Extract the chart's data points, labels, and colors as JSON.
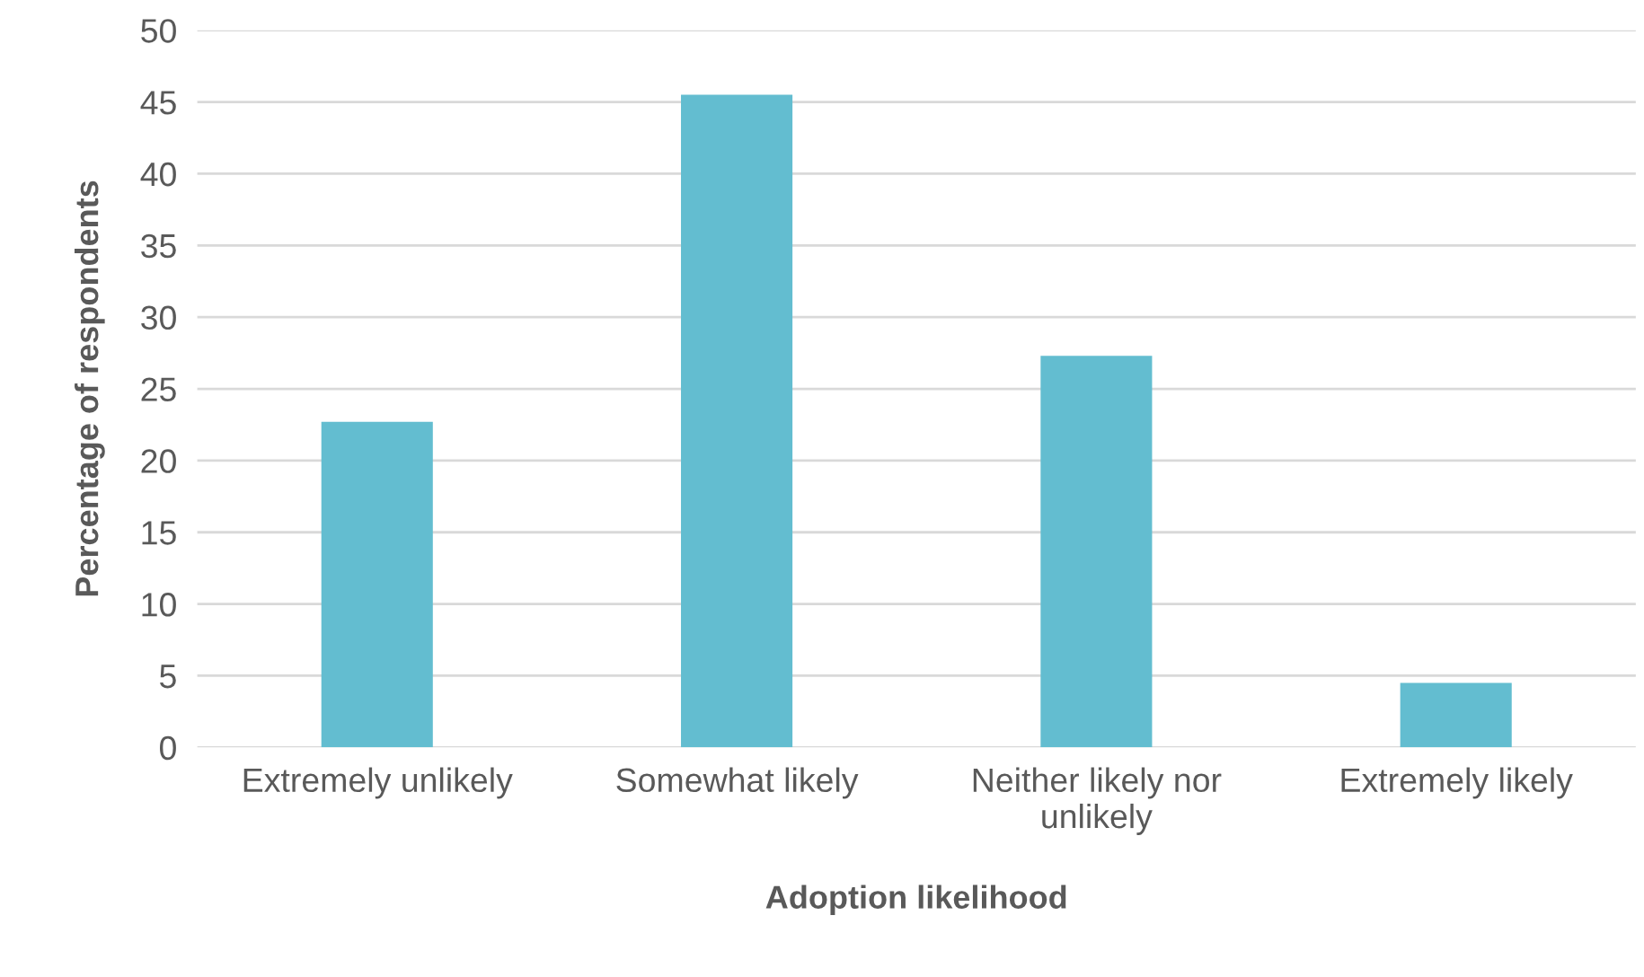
{
  "chart_data": {
    "type": "bar",
    "xlabel": "Adoption likelihood",
    "ylabel": "Percentage of respondents",
    "categories": [
      "Extremely unlikely",
      "Somewhat likely",
      "Neither likely nor unlikely",
      "Extremely likely"
    ],
    "values": [
      22.7,
      45.5,
      27.3,
      4.5
    ],
    "color": "#63bdd0",
    "ylim": [
      0,
      50
    ],
    "yticks": [
      0,
      5,
      10,
      15,
      20,
      25,
      30,
      35,
      40,
      45,
      50
    ],
    "grid": "y",
    "legend": false
  }
}
